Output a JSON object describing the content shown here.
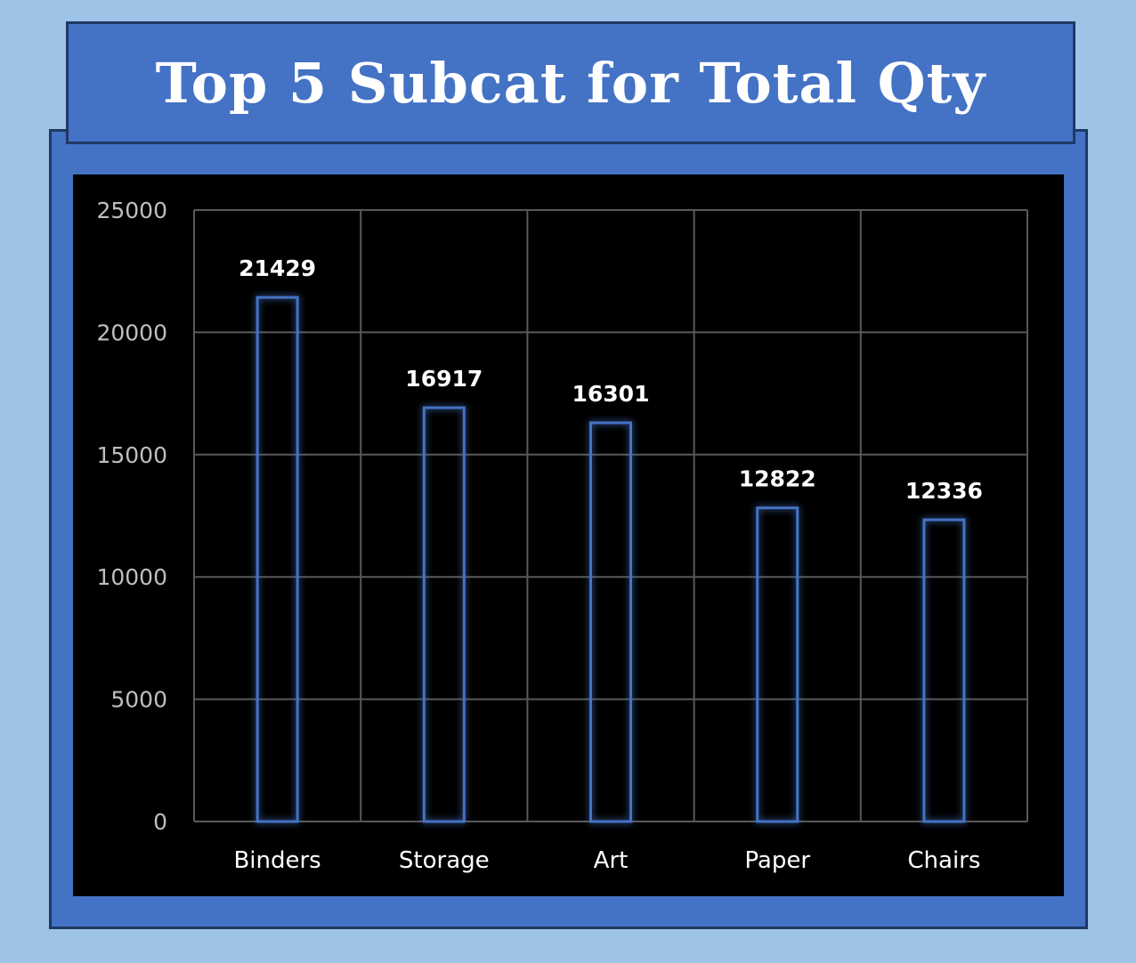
{
  "title": "Top 5 Subcat for Total Qty",
  "colors": {
    "background": "#9dc3e6",
    "panel": "#4472c4",
    "panel_border": "#1f3864",
    "plot_bg": "#000000",
    "bar_outline": "#4472c4",
    "grid": "#595959",
    "text": "#ffffff",
    "tick_text": "#bfbfbf"
  },
  "chart_data": {
    "type": "bar",
    "title": "Top 5 Subcat for Total Qty",
    "categories": [
      "Binders",
      "Storage",
      "Art",
      "Paper",
      "Chairs"
    ],
    "values": [
      21429,
      16917,
      16301,
      12822,
      12336
    ],
    "data_labels": [
      "21429",
      "16917",
      "16301",
      "12822",
      "12336"
    ],
    "y_ticks": [
      "0",
      "5000",
      "10000",
      "15000",
      "20000",
      "25000"
    ],
    "ylim": [
      0,
      25000
    ],
    "grid": true,
    "legend": "none",
    "xlabel": "",
    "ylabel": ""
  }
}
